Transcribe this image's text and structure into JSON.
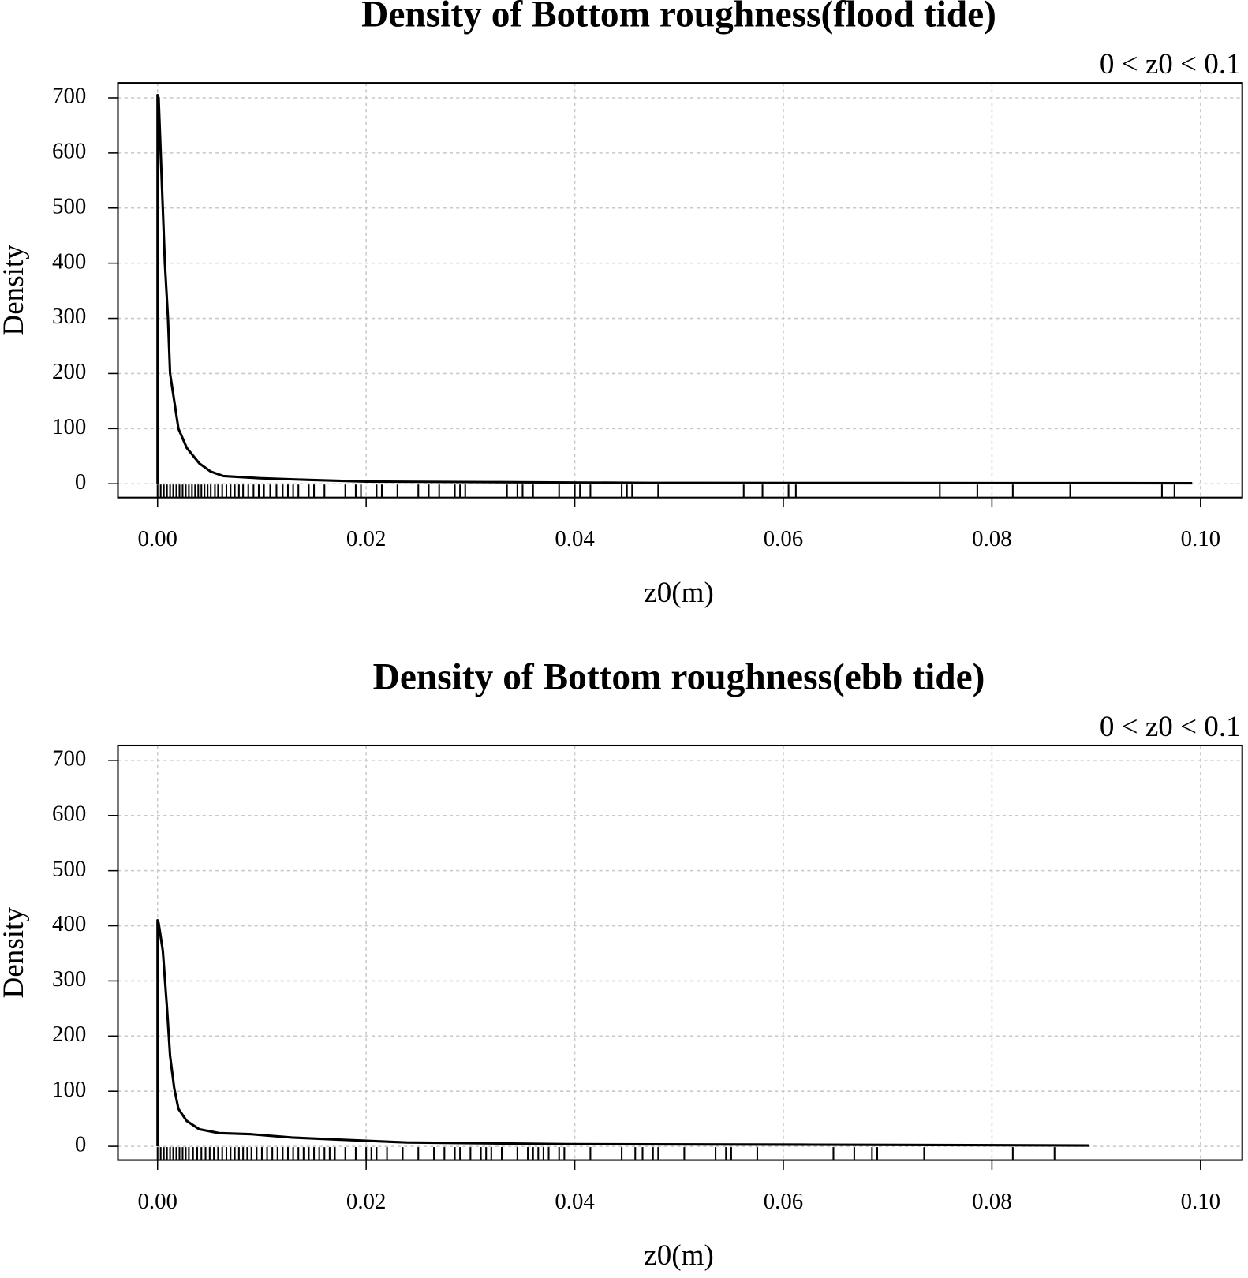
{
  "chart_data": [
    {
      "type": "line",
      "title": "Density of Bottom roughness(flood tide)",
      "annotation": "0 < z0 < 0.1",
      "xlabel": "z0(m)",
      "ylabel": "Density",
      "color": "#000000",
      "grid": true,
      "x": [
        0,
        0,
        0.0001,
        0.0003,
        0.0007,
        0.001,
        0.0012,
        0.0016,
        0.002,
        0.0028,
        0.004,
        0.0051,
        0.0063,
        0.0098,
        0.0145,
        0.02,
        0.0316,
        0.0472,
        0.0992
      ],
      "values": [
        0,
        705,
        700,
        600,
        400,
        300,
        200,
        150,
        100,
        65,
        37,
        22,
        14,
        10,
        7,
        4,
        3,
        1.5,
        1
      ],
      "rug": [
        0,
        0.0003,
        0.0006,
        0.0009,
        0.0012,
        0.0015,
        0.0018,
        0.0021,
        0.0024,
        0.0027,
        0.003,
        0.0033,
        0.0036,
        0.0039,
        0.0042,
        0.0045,
        0.0048,
        0.0051,
        0.0055,
        0.0058,
        0.0062,
        0.0066,
        0.007,
        0.0074,
        0.0078,
        0.0082,
        0.0087,
        0.0092,
        0.0097,
        0.0102,
        0.0108,
        0.0114,
        0.012,
        0.0125,
        0.013,
        0.0135,
        0.0145,
        0.015,
        0.016,
        0.018,
        0.019,
        0.0195,
        0.021,
        0.0215,
        0.023,
        0.025,
        0.026,
        0.027,
        0.0285,
        0.029,
        0.0295,
        0.0335,
        0.0345,
        0.035,
        0.036,
        0.0385,
        0.04,
        0.0405,
        0.0415,
        0.0445,
        0.045,
        0.0455,
        0.048,
        0.0562,
        0.058,
        0.0605,
        0.0612,
        0.075,
        0.0786,
        0.082,
        0.0875,
        0.0963,
        0.0975
      ],
      "xlim": [
        -0.0038,
        0.104
      ],
      "ylim": [
        -25,
        727
      ],
      "xticks": [
        {
          "value": 0,
          "label": "0.00"
        },
        0.02,
        0.04,
        0.06,
        0.08,
        {
          "value": 0.1,
          "label": "0.10"
        }
      ],
      "yticks": [
        0,
        100,
        200,
        300,
        400,
        500,
        600,
        700
      ]
    },
    {
      "type": "line",
      "title": "Density of Bottom roughness(ebb tide)",
      "annotation": "0 < z0 < 0.1",
      "xlabel": "z0(m)",
      "ylabel": "Density",
      "color": "#000000",
      "grid": true,
      "x": [
        0,
        0,
        0.0001,
        0.0005,
        0.0009,
        0.0012,
        0.0016,
        0.002,
        0.0028,
        0.004,
        0.0059,
        0.009,
        0.0129,
        0.0176,
        0.0239,
        0.0394,
        0.0628,
        0.0893
      ],
      "values": [
        0,
        410,
        405,
        355,
        252,
        164,
        105,
        68,
        46,
        31,
        24,
        22,
        16,
        12,
        7,
        4,
        3,
        1.5
      ],
      "rug": [
        0,
        0.0003,
        0.0006,
        0.0009,
        0.0012,
        0.0015,
        0.0018,
        0.0021,
        0.0024,
        0.0027,
        0.003,
        0.0034,
        0.0038,
        0.0042,
        0.0046,
        0.005,
        0.0054,
        0.0058,
        0.0062,
        0.0066,
        0.007,
        0.0074,
        0.0078,
        0.0082,
        0.0086,
        0.009,
        0.0095,
        0.01,
        0.0105,
        0.011,
        0.0115,
        0.012,
        0.0125,
        0.013,
        0.0135,
        0.014,
        0.0145,
        0.015,
        0.0155,
        0.016,
        0.0165,
        0.017,
        0.018,
        0.019,
        0.02,
        0.0205,
        0.021,
        0.022,
        0.0235,
        0.025,
        0.0265,
        0.0275,
        0.0285,
        0.029,
        0.03,
        0.031,
        0.0315,
        0.032,
        0.033,
        0.0345,
        0.0355,
        0.036,
        0.0365,
        0.037,
        0.0375,
        0.0385,
        0.039,
        0.0415,
        0.0445,
        0.0458,
        0.0465,
        0.0475,
        0.048,
        0.0505,
        0.0535,
        0.0545,
        0.055,
        0.0575,
        0.0648,
        0.0668,
        0.0685,
        0.069,
        0.0735,
        0.082,
        0.086
      ],
      "xlim": [
        -0.0038,
        0.104
      ],
      "ylim": [
        -25,
        727
      ],
      "xticks": [
        {
          "value": 0,
          "label": "0.00"
        },
        0.02,
        0.04,
        0.06,
        0.08,
        {
          "value": 0.1,
          "label": "0.10"
        }
      ],
      "yticks": [
        0,
        100,
        200,
        300,
        400,
        500,
        600,
        700
      ]
    }
  ]
}
